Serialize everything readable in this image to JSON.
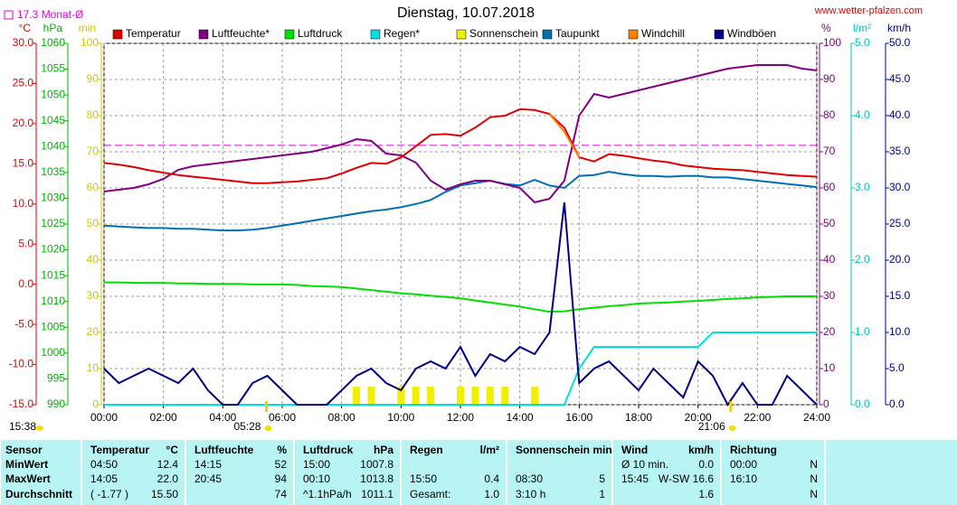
{
  "chart_data": {
    "type": "line",
    "title": "Dienstag, 10.07.2018",
    "source": "www.wetter-pfalzen.com",
    "monthly_average": {
      "value": 17.3,
      "label": "17.3 Monat-Ø",
      "axis": "y_temp",
      "color": "#e000e0"
    },
    "day_length": "15:38",
    "sunrise": {
      "value": 5.467,
      "label": "05:28"
    },
    "sunset": {
      "value": 21.1,
      "label": "21:06"
    },
    "xlim": [
      0,
      24
    ],
    "xticks": [
      {
        "value": 0,
        "label": "00:00"
      },
      {
        "value": 2,
        "label": "02:00"
      },
      {
        "value": 4,
        "label": "04:00"
      },
      {
        "value": 6,
        "label": "06:00"
      },
      {
        "value": 8,
        "label": "08:00"
      },
      {
        "value": 10,
        "label": "10:00"
      },
      {
        "value": 12,
        "label": "12:00"
      },
      {
        "value": 14,
        "label": "14:00"
      },
      {
        "value": 16,
        "label": "16:00"
      },
      {
        "value": 18,
        "label": "18:00"
      },
      {
        "value": 20,
        "label": "20:00"
      },
      {
        "value": 22,
        "label": "22:00"
      },
      {
        "value": 24,
        "label": "24:00"
      }
    ],
    "grid": true,
    "axes": {
      "y_temp": {
        "unit": "°C",
        "color": "#e00000",
        "lim": [
          -15,
          30
        ],
        "ticks": [
          {
            "value": 30,
            "label": "30.0"
          },
          {
            "value": 25,
            "label": "25.0"
          },
          {
            "value": 20,
            "label": "20.0"
          },
          {
            "value": 15,
            "label": "15.0"
          },
          {
            "value": 10,
            "label": "10.0"
          },
          {
            "value": 5,
            "label": "5.0"
          },
          {
            "value": 0,
            "label": "0.0"
          },
          {
            "value": -5,
            "label": "-5.0"
          },
          {
            "value": -10,
            "label": "-10.0"
          },
          {
            "value": -15,
            "label": "-15.0"
          }
        ]
      },
      "y_hpa": {
        "unit": "hPa",
        "color": "#00b000",
        "lim": [
          990,
          1060
        ],
        "ticks": [
          1060,
          1055,
          1050,
          1045,
          1040,
          1035,
          1030,
          1025,
          1020,
          1015,
          1010,
          1005,
          1000,
          995,
          990
        ]
      },
      "y_min": {
        "unit": "min",
        "color": "#c8c800",
        "lim": [
          0,
          100
        ],
        "ticks": [
          100,
          90,
          80,
          70,
          60,
          50,
          40,
          30,
          20,
          10,
          0
        ]
      },
      "y_pct": {
        "unit": "%",
        "color": "#800080",
        "lim": [
          0,
          100
        ],
        "ticks": [
          100,
          90,
          80,
          70,
          60,
          50,
          40,
          30,
          20,
          10,
          0
        ]
      },
      "y_rain": {
        "unit": "l/m²",
        "color": "#00c0c0",
        "lim": [
          0,
          5
        ],
        "ticks": [
          {
            "value": 5,
            "label": "5.0"
          },
          {
            "value": 4,
            "label": "4.0"
          },
          {
            "value": 3,
            "label": "3.0"
          },
          {
            "value": 2,
            "label": "2.0"
          },
          {
            "value": 1,
            "label": "1.0"
          },
          {
            "value": 0,
            "label": "0.0"
          }
        ]
      },
      "y_wind": {
        "unit": "km/h",
        "color": "#000080",
        "lim": [
          0,
          50
        ],
        "ticks": [
          {
            "value": 50,
            "label": "50.0"
          },
          {
            "value": 45,
            "label": "45.0"
          },
          {
            "value": 40,
            "label": "40.0"
          },
          {
            "value": 35,
            "label": "35.0"
          },
          {
            "value": 30,
            "label": "30.0"
          },
          {
            "value": 25,
            "label": "25.0"
          },
          {
            "value": 20,
            "label": "20.0"
          },
          {
            "value": 15,
            "label": "15.0"
          },
          {
            "value": 10,
            "label": "10.0"
          },
          {
            "value": 5,
            "label": "5.0"
          },
          {
            "value": 0,
            "label": "0.0"
          }
        ]
      }
    },
    "x": [
      0,
      0.5,
      1,
      1.5,
      2,
      2.5,
      3,
      3.5,
      4,
      4.5,
      5,
      5.5,
      6,
      6.5,
      7,
      7.5,
      8,
      8.5,
      9,
      9.5,
      10,
      10.5,
      11,
      11.5,
      12,
      12.5,
      13,
      13.5,
      14,
      14.5,
      15,
      15.5,
      16,
      16.5,
      17,
      17.5,
      18,
      18.5,
      19,
      19.5,
      20,
      20.5,
      21,
      21.5,
      22,
      22.5,
      23,
      23.5,
      24
    ],
    "series": [
      {
        "name": "Temperatur",
        "color": "#e00000",
        "axis": "y_temp",
        "type": "line",
        "values": [
          15.1,
          14.9,
          14.6,
          14.2,
          13.9,
          13.6,
          13.4,
          13.2,
          13.0,
          12.8,
          12.6,
          12.6,
          12.7,
          12.8,
          13.0,
          13.2,
          13.8,
          14.5,
          15.1,
          15.0,
          15.8,
          17.2,
          18.6,
          18.7,
          18.5,
          19.5,
          20.8,
          21.0,
          21.8,
          21.7,
          21.2,
          19.5,
          15.8,
          15.3,
          16.2,
          16.0,
          15.7,
          15.4,
          15.2,
          14.8,
          14.6,
          14.4,
          14.3,
          14.2,
          14.0,
          13.8,
          13.6,
          13.5,
          13.4
        ]
      },
      {
        "name": "Luftfeuchte*",
        "color": "#800080",
        "axis": "y_pct",
        "type": "line",
        "values": [
          59,
          59.5,
          60,
          61,
          62.5,
          65,
          66,
          66.5,
          67,
          67.5,
          68,
          68.5,
          69,
          69.5,
          70,
          71,
          72,
          73.5,
          73,
          69.5,
          69,
          67,
          62,
          59.5,
          61,
          62,
          62,
          61,
          60,
          56,
          57,
          62,
          80,
          86,
          85,
          86,
          87,
          88,
          89,
          90,
          91,
          92,
          93,
          93.5,
          94,
          94,
          94,
          93,
          92.5
        ]
      },
      {
        "name": "Luftdruck",
        "color": "#00e000",
        "axis": "y_hpa",
        "type": "line",
        "values": [
          1013.7,
          1013.7,
          1013.6,
          1013.6,
          1013.6,
          1013.5,
          1013.5,
          1013.4,
          1013.4,
          1013.4,
          1013.3,
          1013.3,
          1013.3,
          1013.2,
          1013.0,
          1012.9,
          1012.8,
          1012.5,
          1012.2,
          1011.9,
          1011.6,
          1011.4,
          1011.1,
          1010.9,
          1010.6,
          1010.2,
          1009.8,
          1009.4,
          1009.0,
          1008.5,
          1008.0,
          1008.1,
          1008.5,
          1008.8,
          1009.1,
          1009.3,
          1009.6,
          1009.7,
          1009.8,
          1010.0,
          1010.1,
          1010.3,
          1010.5,
          1010.6,
          1010.8,
          1010.9,
          1011.0,
          1011.0,
          1011.0
        ]
      },
      {
        "name": "Regen*",
        "color": "#00e0e0",
        "axis": "y_rain",
        "type": "line",
        "values": [
          0,
          0,
          0,
          0,
          0,
          0,
          0,
          0,
          0,
          0,
          0,
          0,
          0,
          0,
          0,
          0,
          0,
          0,
          0,
          0,
          0,
          0,
          0,
          0,
          0,
          0,
          0,
          0,
          0,
          0,
          0,
          0,
          0.5,
          0.8,
          0.8,
          0.8,
          0.8,
          0.8,
          0.8,
          0.8,
          0.8,
          1.0,
          1.0,
          1.0,
          1.0,
          1.0,
          1.0,
          1.0,
          1.0
        ]
      },
      {
        "name": "Sonnenschein",
        "color": "#f0f000",
        "axis": "y_min",
        "type": "bar",
        "values": [
          0,
          0,
          0,
          0,
          0,
          0,
          0,
          0,
          0,
          0,
          0,
          0,
          0,
          0,
          0,
          0,
          0,
          5,
          5,
          0,
          5,
          5,
          5,
          0,
          5,
          5,
          5,
          5,
          0,
          5,
          0,
          0,
          0,
          0,
          0,
          0,
          0,
          0,
          0,
          0,
          0,
          0,
          0,
          0,
          0,
          0,
          0,
          0,
          0
        ]
      },
      {
        "name": "Taupunkt",
        "color": "#0070b0",
        "axis": "y_temp",
        "type": "line",
        "values": [
          7.3,
          7.2,
          7.1,
          7.0,
          7.0,
          6.9,
          6.9,
          6.8,
          6.7,
          6.7,
          6.8,
          7.0,
          7.3,
          7.6,
          7.9,
          8.2,
          8.5,
          8.8,
          9.1,
          9.3,
          9.6,
          10.0,
          10.5,
          11.5,
          12.3,
          12.6,
          12.9,
          12.5,
          12.3,
          13.0,
          12.3,
          12.0,
          13.5,
          13.6,
          14.0,
          13.7,
          13.5,
          13.5,
          13.4,
          13.5,
          13.5,
          13.3,
          13.3,
          13.1,
          12.9,
          12.7,
          12.5,
          12.3,
          12.1
        ]
      },
      {
        "name": "Windchill",
        "color": "#ff8000",
        "axis": "y_temp",
        "type": "line",
        "values": [
          null,
          null,
          null,
          null,
          null,
          null,
          null,
          null,
          null,
          null,
          null,
          null,
          null,
          null,
          null,
          null,
          null,
          null,
          null,
          null,
          null,
          null,
          null,
          null,
          null,
          null,
          null,
          null,
          null,
          null,
          21.2,
          19.0,
          15.8,
          null,
          null,
          null,
          null,
          null,
          null,
          null,
          null,
          null,
          null,
          null,
          null,
          null,
          null,
          null,
          null
        ]
      },
      {
        "name": "Windböen",
        "color": "#000080",
        "axis": "y_wind",
        "type": "line",
        "values": [
          5,
          3,
          4,
          5,
          4,
          3,
          5,
          2,
          0,
          0,
          3,
          4,
          2,
          0,
          0,
          0,
          2,
          4,
          5,
          3,
          2,
          5,
          6,
          5,
          8,
          4,
          7,
          6,
          8,
          7,
          10,
          28,
          3,
          5,
          6,
          4,
          2,
          5,
          3,
          1,
          6,
          4,
          0,
          3,
          0,
          0,
          4,
          2,
          0
        ]
      }
    ]
  },
  "table": {
    "header": [
      {
        "left": "Sensor"
      },
      {
        "left": "Temperatur",
        "right": "°C"
      },
      {
        "left": "Luftfeuchte",
        "right": "%"
      },
      {
        "left": "Luftdruck",
        "right": "hPa"
      },
      {
        "left": "Regen",
        "right": "l/m²"
      },
      {
        "left": "Sonnenschein min"
      },
      {
        "left": "Wind",
        "right": "km/h"
      },
      {
        "left": "Richtung"
      }
    ],
    "rows": [
      [
        {
          "left": "MinWert"
        },
        {
          "left": "04:50",
          "right": "12.4"
        },
        {
          "left": "14:15",
          "right": "52"
        },
        {
          "left": "15:00",
          "right": "1007.8"
        },
        {},
        {},
        {
          "left": "Ø 10 min.",
          "right": "0.0"
        },
        {
          "left": "00:00",
          "right": "N"
        }
      ],
      [
        {
          "left": "MaxWert"
        },
        {
          "left": "14:05",
          "right": "22.0"
        },
        {
          "left": "20:45",
          "right": "94"
        },
        {
          "left": "00:10",
          "right": "1013.8"
        },
        {
          "left": "15:50",
          "right": "0.4"
        },
        {
          "left": "08:30",
          "right": "5"
        },
        {
          "left": "15:45",
          "right": "W-SW 16.6"
        },
        {
          "left": "16:10",
          "right": "N"
        }
      ],
      [
        {
          "left": "Durchschnitt"
        },
        {
          "left": "( -1.77 )",
          "right": "15.50"
        },
        {
          "right": "74"
        },
        {
          "left": "^1.1hPa/h",
          "right": "1011.1"
        },
        {
          "left": "Gesamt:",
          "right": "1.0"
        },
        {
          "left": "3:10 h",
          "right": "1"
        },
        {
          "right": "1.6"
        },
        {
          "right": "N"
        }
      ]
    ]
  }
}
